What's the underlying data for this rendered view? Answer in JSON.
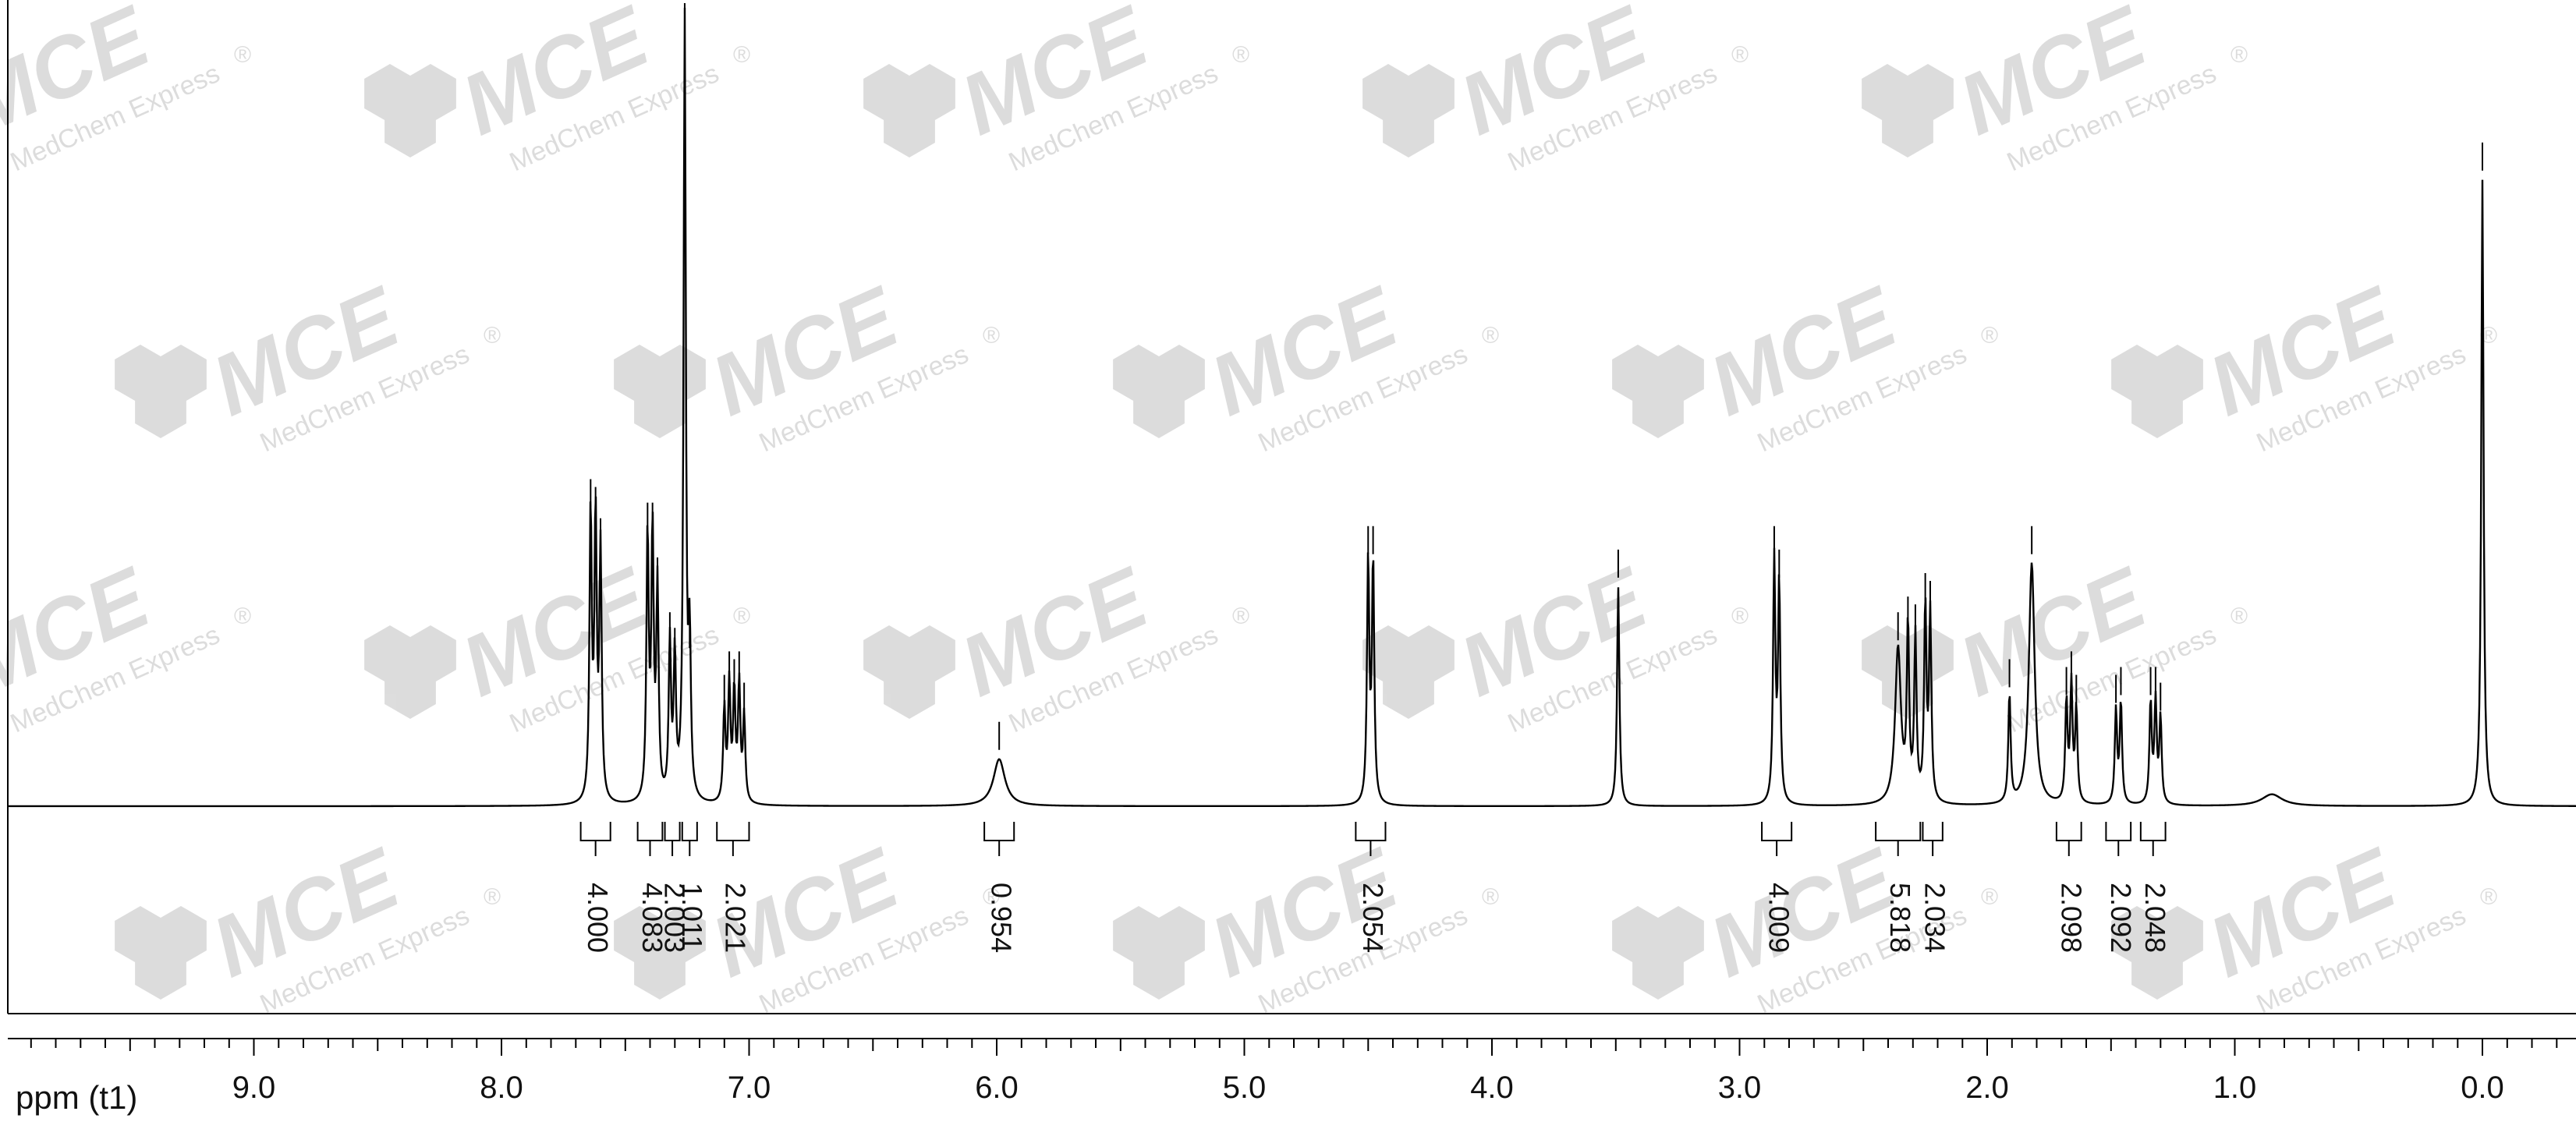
{
  "watermark": {
    "brand": "MCE",
    "subtitle": "MedChem Express",
    "registered": "®",
    "color": "#d9d9d9"
  },
  "chart_data": {
    "type": "line",
    "title": "",
    "xlabel": "ppm (t1)",
    "ylabel": "",
    "x_reversed": true,
    "xlim": [
      10.0,
      -0.4
    ],
    "x_ticks": [
      "9.0",
      "8.0",
      "7.0",
      "6.0",
      "5.0",
      "4.0",
      "3.0",
      "2.0",
      "1.0",
      "0.0"
    ],
    "x_tick_values": [
      9.0,
      8.0,
      7.0,
      6.0,
      5.0,
      4.0,
      3.0,
      2.0,
      1.0,
      0.0
    ],
    "y_relative_max": 1.0,
    "grid": false,
    "line_color": "#000000",
    "peaks": [
      {
        "ppm": 7.64,
        "height": 0.37
      },
      {
        "ppm": 7.62,
        "height": 0.36
      },
      {
        "ppm": 7.6,
        "height": 0.32
      },
      {
        "ppm": 7.41,
        "height": 0.34
      },
      {
        "ppm": 7.39,
        "height": 0.34
      },
      {
        "ppm": 7.37,
        "height": 0.27
      },
      {
        "ppm": 7.32,
        "height": 0.2
      },
      {
        "ppm": 7.3,
        "height": 0.18
      },
      {
        "ppm": 7.26,
        "height": 1.0
      },
      {
        "ppm": 7.24,
        "height": 0.19
      },
      {
        "ppm": 7.1,
        "height": 0.12
      },
      {
        "ppm": 7.08,
        "height": 0.15
      },
      {
        "ppm": 7.06,
        "height": 0.14
      },
      {
        "ppm": 7.04,
        "height": 0.15
      },
      {
        "ppm": 7.02,
        "height": 0.11
      },
      {
        "ppm": 5.99,
        "height": 0.06
      },
      {
        "ppm": 4.5,
        "height": 0.31
      },
      {
        "ppm": 4.48,
        "height": 0.31
      },
      {
        "ppm": 3.49,
        "height": 0.28
      },
      {
        "ppm": 2.86,
        "height": 0.31
      },
      {
        "ppm": 2.84,
        "height": 0.28
      },
      {
        "ppm": 2.36,
        "height": 0.2
      },
      {
        "ppm": 2.32,
        "height": 0.22
      },
      {
        "ppm": 2.29,
        "height": 0.21
      },
      {
        "ppm": 2.25,
        "height": 0.25
      },
      {
        "ppm": 2.23,
        "height": 0.24
      },
      {
        "ppm": 1.91,
        "height": 0.14
      },
      {
        "ppm": 1.82,
        "height": 0.31
      },
      {
        "ppm": 1.68,
        "height": 0.13
      },
      {
        "ppm": 1.66,
        "height": 0.15
      },
      {
        "ppm": 1.64,
        "height": 0.12
      },
      {
        "ppm": 1.48,
        "height": 0.12
      },
      {
        "ppm": 1.46,
        "height": 0.13
      },
      {
        "ppm": 1.34,
        "height": 0.13
      },
      {
        "ppm": 1.32,
        "height": 0.13
      },
      {
        "ppm": 1.3,
        "height": 0.11
      },
      {
        "ppm": 0.85,
        "height": 0.015
      },
      {
        "ppm": 0.0,
        "height": 0.8
      }
    ],
    "integrals": [
      {
        "from": 7.68,
        "to": 7.56,
        "value": "4.000"
      },
      {
        "from": 7.45,
        "to": 7.35,
        "value": "4.083"
      },
      {
        "from": 7.34,
        "to": 7.28,
        "value": "2.003"
      },
      {
        "from": 7.27,
        "to": 7.21,
        "value": "1.011"
      },
      {
        "from": 7.13,
        "to": 7.0,
        "value": "2.021"
      },
      {
        "from": 6.05,
        "to": 5.93,
        "value": "0.954"
      },
      {
        "from": 4.55,
        "to": 4.43,
        "value": "2.054"
      },
      {
        "from": 2.91,
        "to": 2.79,
        "value": "4.009"
      },
      {
        "from": 2.45,
        "to": 2.27,
        "value": "5.818"
      },
      {
        "from": 2.26,
        "to": 2.18,
        "value": "2.034"
      },
      {
        "from": 1.72,
        "to": 1.62,
        "value": "2.098"
      },
      {
        "from": 1.52,
        "to": 1.42,
        "value": "2.092"
      },
      {
        "from": 1.38,
        "to": 1.28,
        "value": "2.048"
      }
    ]
  }
}
